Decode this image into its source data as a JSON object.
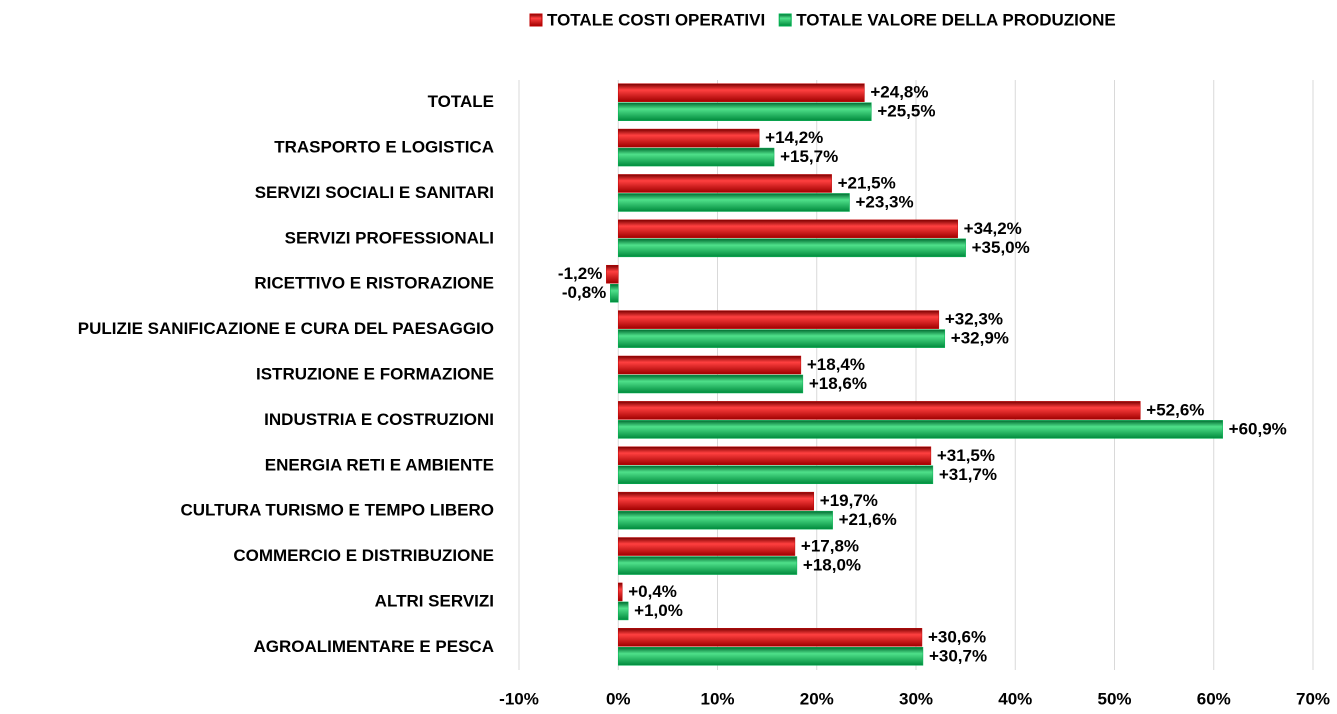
{
  "chart_data": {
    "type": "bar",
    "orientation": "horizontal",
    "categories": [
      "TOTALE",
      "TRASPORTO E LOGISTICA",
      "SERVIZI SOCIALI E SANITARI",
      "SERVIZI PROFESSIONALI",
      "RICETTIVO E RISTORAZIONE",
      "PULIZIE SANIFICAZIONE E CURA DEL PAESAGGIO",
      "ISTRUZIONE E FORMAZIONE",
      "INDUSTRIA E COSTRUZIONI",
      "ENERGIA RETI E AMBIENTE",
      "CULTURA TURISMO E TEMPO LIBERO",
      "COMMERCIO E DISTRIBUZIONE",
      "ALTRI SERVIZI",
      "AGROALIMENTARE E PESCA"
    ],
    "series": [
      {
        "name": "TOTALE COSTI OPERATIVI",
        "color": "#c00000",
        "values": [
          24.8,
          14.2,
          21.5,
          34.2,
          -1.2,
          32.3,
          18.4,
          52.6,
          31.5,
          19.7,
          17.8,
          0.4,
          30.6
        ],
        "value_labels": [
          "+24,8%",
          "+14,2%",
          "+21,5%",
          "+34,2%",
          "-1,2%",
          "+32,3%",
          "+18,4%",
          "+52,6%",
          "+31,5%",
          "+19,7%",
          "+17,8%",
          "+0,4%",
          "+30,6%"
        ]
      },
      {
        "name": "TOTALE VALORE DELLA PRODUZIONE",
        "color": "#00b050",
        "values": [
          25.5,
          15.7,
          23.3,
          35.0,
          -0.8,
          32.9,
          18.6,
          60.9,
          31.7,
          21.6,
          18.0,
          1.0,
          30.7
        ],
        "value_labels": [
          "+25,5%",
          "+15,7%",
          "+23,3%",
          "+35,0%",
          "-0,8%",
          "+32,9%",
          "+18,6%",
          "+60,9%",
          "+31,7%",
          "+21,6%",
          "+18,0%",
          "+1,0%",
          "+30,7%"
        ]
      }
    ],
    "xlim": [
      -10,
      70
    ],
    "xticks": [
      {
        "value": -10,
        "label": "-10%"
      },
      {
        "value": 0,
        "label": "0%"
      },
      {
        "value": 10,
        "label": "10%"
      },
      {
        "value": 20,
        "label": "20%"
      },
      {
        "value": 30,
        "label": "30%"
      },
      {
        "value": 40,
        "label": "40%"
      },
      {
        "value": 50,
        "label": "50%"
      },
      {
        "value": 60,
        "label": "60%"
      },
      {
        "value": 70,
        "label": "70%"
      }
    ],
    "grid": true,
    "legend": "top"
  }
}
